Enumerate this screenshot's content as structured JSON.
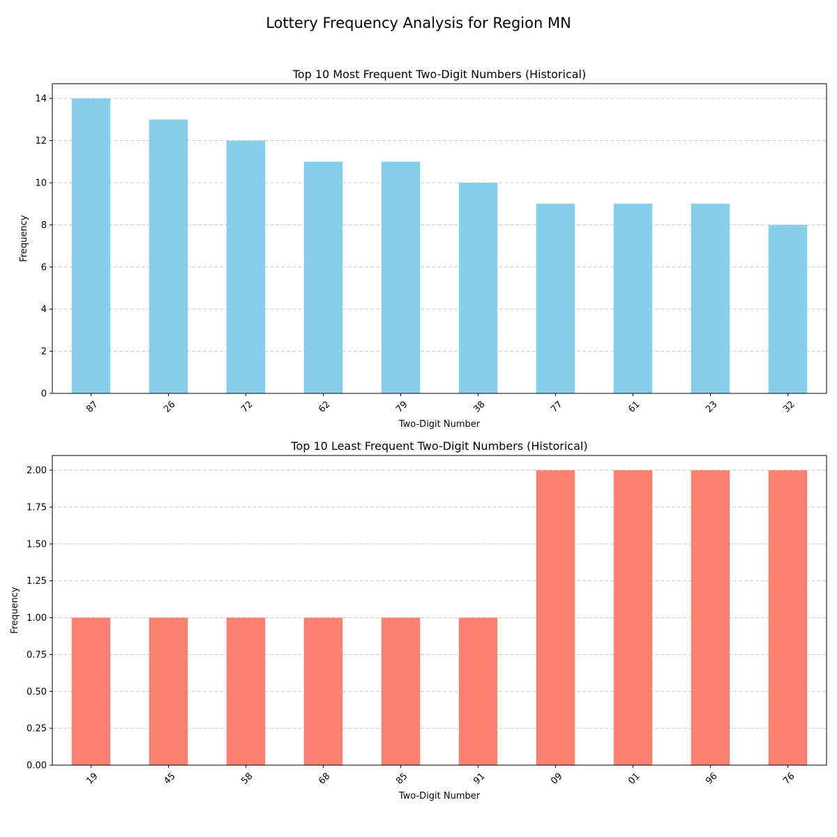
{
  "figure": {
    "title": "Lottery Frequency Analysis for Region MN"
  },
  "chart_data": [
    {
      "type": "bar",
      "title": "Top 10 Most Frequent Two-Digit Numbers (Historical)",
      "xlabel": "Two-Digit Number",
      "ylabel": "Frequency",
      "categories": [
        "87",
        "26",
        "72",
        "62",
        "79",
        "38",
        "77",
        "61",
        "23",
        "32"
      ],
      "values": [
        14,
        13,
        12,
        11,
        11,
        10,
        9,
        9,
        9,
        8
      ],
      "ylim": [
        0,
        14.7
      ],
      "yticks": [
        0,
        2,
        4,
        6,
        8,
        10,
        12,
        14
      ],
      "ytick_labels": [
        "0",
        "2",
        "4",
        "6",
        "8",
        "10",
        "12",
        "14"
      ],
      "color": "#87ceeb",
      "grid": "y-dashed",
      "legend": "none"
    },
    {
      "type": "bar",
      "title": "Top 10 Least Frequent Two-Digit Numbers (Historical)",
      "xlabel": "Two-Digit Number",
      "ylabel": "Frequency",
      "categories": [
        "19",
        "45",
        "58",
        "68",
        "85",
        "91",
        "09",
        "01",
        "96",
        "76"
      ],
      "values": [
        1,
        1,
        1,
        1,
        1,
        1,
        2,
        2,
        2,
        2
      ],
      "ylim": [
        0,
        2.1
      ],
      "yticks": [
        0,
        0.25,
        0.5,
        0.75,
        1.0,
        1.25,
        1.5,
        1.75,
        2.0
      ],
      "ytick_labels": [
        "0.00",
        "0.25",
        "0.50",
        "0.75",
        "1.00",
        "1.25",
        "1.50",
        "1.75",
        "2.00"
      ],
      "color": "#fa8072",
      "grid": "y-dashed",
      "legend": "none"
    }
  ]
}
